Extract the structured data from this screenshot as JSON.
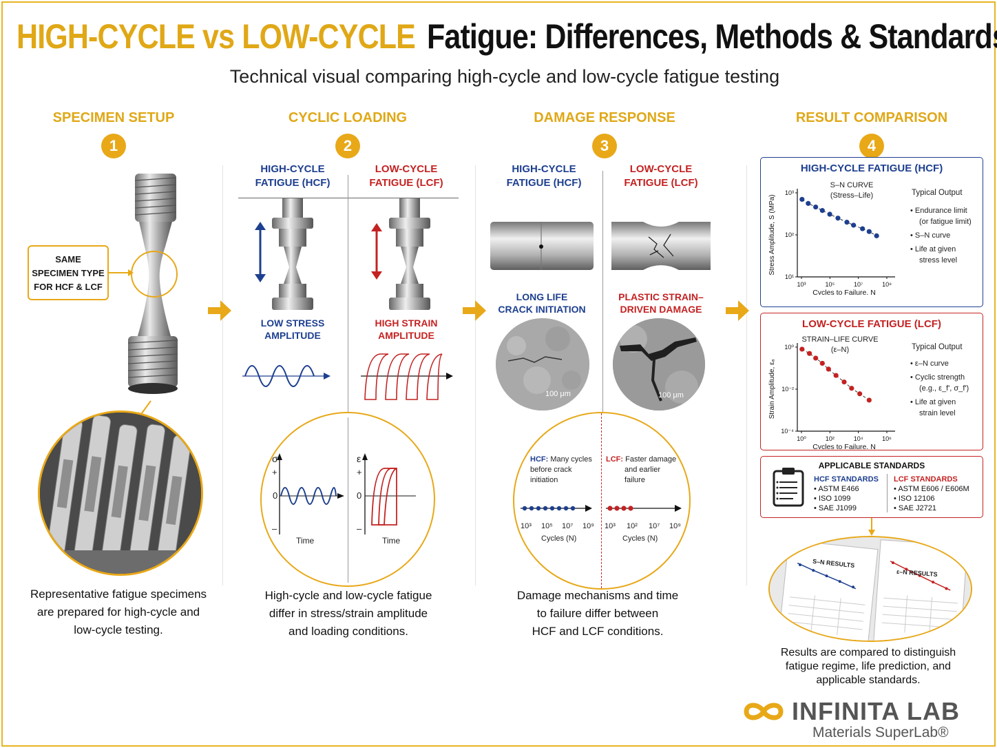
{
  "header": {
    "title_highlight": "HIGH-CYCLE vs LOW-CYCLE",
    "title_main": "Fatigue: Differences, Methods & Standards",
    "subtitle": "Technical visual comparing high-cycle and low-cycle fatigue testing"
  },
  "steps": [
    {
      "num": "1",
      "title": "SPECIMEN SETUP"
    },
    {
      "num": "2",
      "title": "CYCLIC LOADING"
    },
    {
      "num": "3",
      "title": "DAMAGE RESPONSE"
    },
    {
      "num": "4",
      "title": "RESULT COMPARISON"
    }
  ],
  "setup": {
    "callout": [
      "SAME",
      "SPECIMEN TYPE",
      "FOR HCF & LCF"
    ],
    "caption": [
      "Representative fatigue specimens",
      "are prepared for high-cycle and",
      "low-cycle testing."
    ]
  },
  "loading": {
    "hcf_label": [
      "HIGH-CYCLE",
      "FATIGUE (HCF)"
    ],
    "lcf_label": [
      "LOW-CYCLE",
      "FATIGUE (LCF)"
    ],
    "hcf_amp": [
      "LOW STRESS",
      "AMPLITUDE"
    ],
    "lcf_amp": [
      "HIGH STRAIN",
      "AMPLITUDE"
    ],
    "plot_hcf_axis": "σ",
    "plot_lcf_axis": "ε",
    "plus": "+",
    "zero": "0",
    "minus": "–",
    "time": "Time",
    "caption": [
      "High-cycle and low-cycle fatigue",
      "differ in stress/strain amplitude",
      "and loading conditions."
    ]
  },
  "damage": {
    "hcf_label": [
      "HIGH-CYCLE",
      "FATIGUE (HCF)"
    ],
    "lcf_label": [
      "LOW-CYCLE",
      "FATIGUE (LCF)"
    ],
    "hcf_desc": [
      "LONG LIFE",
      "CRACK INITIATION"
    ],
    "lcf_desc": [
      "PLASTIC STRAIN–",
      "DRIVEN DAMAGE"
    ],
    "scale": "100 μm",
    "hcf_note": [
      "HCF:",
      "Many cycles",
      "before crack",
      "initiation"
    ],
    "lcf_note": [
      "LCF:",
      "Faster damage",
      "and earlier",
      "failure"
    ],
    "hcf_ticks": [
      "10³",
      "10⁵",
      "10⁷",
      "10⁹"
    ],
    "lcf_ticks": [
      "10³",
      "10²",
      "10⁷",
      "10⁹"
    ],
    "cycles_label": "Cycles (N)",
    "caption": [
      "Damage mechanisms and time",
      "to failure differ between",
      "HCF and LCF conditions."
    ]
  },
  "results": {
    "hcf_panel": {
      "title": "HIGH-CYCLE FATIGUE (HCF)",
      "curve": [
        "S–N CURVE",
        "(Stress–Life)"
      ],
      "ylabel": "Stress Amplitude, S (MPa)",
      "xlabel": "Cycles to Failure, N",
      "yticks": [
        "10³",
        "10²",
        "10¹"
      ],
      "xticks": [
        "10³",
        "10⁵",
        "10⁷",
        "10⁹"
      ],
      "output_title": "Typical Output",
      "outputs": [
        "Endurance limit",
        "(or fatigue limit)",
        "S–N curve",
        "Life at given",
        "stress level"
      ]
    },
    "lcf_panel": {
      "title": "LOW-CYCLE FATIGUE (LCF)",
      "curve": [
        "STRAIN–LIFE CURVE",
        "(ε–N)"
      ],
      "ylabel": "Strain Amplitude, εₐ",
      "xlabel": "Cycles to Failure, N",
      "yticks": [
        "10⁰",
        "10⁻²",
        "10⁻⁴"
      ],
      "xticks": [
        "10⁰",
        "10²",
        "10⁴",
        "10⁶"
      ],
      "output_title": "Typical Output",
      "outputs": [
        "ε–N curve",
        "Cyclic strength",
        "(e.g., ε_f', σ_f')",
        "Life at given",
        "strain level"
      ]
    },
    "standards": {
      "title": "APPLICABLE STANDARDS",
      "hcf_title": "HCF STANDARDS",
      "hcf_items": [
        "ASTM E466",
        "ISO 1099",
        "SAE J1099"
      ],
      "lcf_title": "LCF STANDARDS",
      "lcf_items": [
        "ASTM E606 / E606M",
        "ISO 12106",
        "SAE J2721"
      ]
    },
    "sheets": {
      "sn": "S–N RESULTS",
      "en": "ε–N RESULTS"
    },
    "caption": [
      "Results are compared to distinguish",
      "fatigue regime, life prediction, and",
      "applicable standards."
    ]
  },
  "logo": {
    "name": "INFINITA LAB",
    "tagline": "Materials SuperLab®"
  },
  "colors": {
    "accent": "#e8a818",
    "blue": "#1d3f8f",
    "red": "#c42222"
  },
  "chart_data": [
    {
      "type": "scatter",
      "title": "S–N CURVE (Stress–Life)",
      "xlabel": "Cycles to Failure, N",
      "ylabel": "Stress Amplitude, S (MPa)",
      "xscale": "log",
      "yscale": "log",
      "xlim": [
        1000,
        1000000000
      ],
      "ylim": [
        10,
        1000
      ],
      "x": [
        2000,
        5000,
        15000,
        40000,
        120000,
        400000,
        1500000,
        4000000,
        15000000,
        40000000,
        120000000
      ],
      "y": [
        700,
        560,
        460,
        380,
        310,
        250,
        200,
        170,
        140,
        120,
        95
      ]
    },
    {
      "type": "scatter",
      "title": "STRAIN–LIFE CURVE (ε–N)",
      "xlabel": "Cycles to Failure, N",
      "ylabel": "Strain Amplitude, εₐ",
      "xscale": "log",
      "yscale": "log",
      "xlim": [
        1,
        1000000
      ],
      "ylim": [
        0.0001,
        1
      ],
      "x": [
        2,
        6,
        15,
        40,
        100,
        300,
        1000,
        3000,
        10000,
        40000
      ],
      "y": [
        0.8,
        0.5,
        0.3,
        0.17,
        0.09,
        0.045,
        0.022,
        0.011,
        0.006,
        0.003
      ]
    }
  ]
}
